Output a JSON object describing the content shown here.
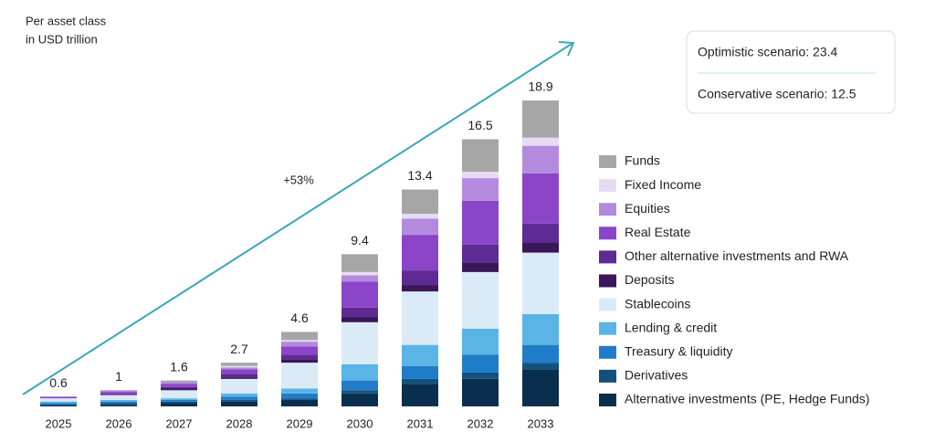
{
  "chart_data": {
    "type": "stacked-bar",
    "subtitle": [
      "Per asset class",
      "in USD trillion"
    ],
    "annotation": "+53%",
    "scenarios": [
      "Optimistic scenario: 23.4",
      "Conservative scenario: 12.5"
    ],
    "categories": [
      "2025",
      "2026",
      "2027",
      "2028",
      "2029",
      "2030",
      "2031",
      "2032",
      "2033"
    ],
    "totals": [
      0.6,
      1.0,
      1.6,
      2.7,
      4.6,
      9.4,
      13.4,
      16.5,
      18.9
    ],
    "series": [
      {
        "name": "Alternative investments (PE, Hedge Funds)",
        "color": "#0a2f4e",
        "values": [
          0.1,
          0.1,
          0.2,
          0.3,
          0.4,
          0.8,
          1.4,
          1.7,
          2.3
        ]
      },
      {
        "name": "Derivatives",
        "color": "#12507e",
        "values": [
          0,
          0.1,
          0.1,
          0.1,
          0.1,
          0.2,
          0.3,
          0.4,
          0.4
        ]
      },
      {
        "name": "Treasury & liquidity",
        "color": "#1f7cc8",
        "values": [
          0.1,
          0.1,
          0.1,
          0.2,
          0.3,
          0.6,
          0.8,
          1.1,
          1.1
        ]
      },
      {
        "name": "Lending & credit",
        "color": "#5ab4e6",
        "values": [
          0.1,
          0.1,
          0.1,
          0.2,
          0.3,
          1.0,
          1.3,
          1.6,
          1.9
        ]
      },
      {
        "name": "Stablecoins",
        "color": "#dbeaf7",
        "values": [
          0.2,
          0.3,
          0.5,
          0.9,
          1.6,
          2.6,
          3.3,
          3.5,
          3.8
        ]
      },
      {
        "name": "Deposits",
        "color": "#3a1858",
        "values": [
          0,
          0,
          0.1,
          0.1,
          0.2,
          0.3,
          0.4,
          0.6,
          0.6
        ]
      },
      {
        "name": "Other alternative investments and RWA",
        "color": "#5e2a93",
        "values": [
          0,
          0.1,
          0.1,
          0.2,
          0.3,
          0.6,
          0.9,
          1.1,
          1.2
        ]
      },
      {
        "name": "Real Estate",
        "color": "#8c44c8",
        "values": [
          0.1,
          0.1,
          0.2,
          0.3,
          0.5,
          1.6,
          2.2,
          2.7,
          3.1
        ]
      },
      {
        "name": "Equities",
        "color": "#b48ade",
        "values": [
          0,
          0.1,
          0.1,
          0.1,
          0.3,
          0.4,
          1.0,
          1.4,
          1.7
        ]
      },
      {
        "name": "Fixed Income",
        "color": "#e6dcf2",
        "values": [
          0,
          0,
          0,
          0.1,
          0.1,
          0.2,
          0.3,
          0.4,
          0.5
        ]
      },
      {
        "name": "Funds",
        "color": "#a6a6a6",
        "values": [
          0,
          0,
          0.1,
          0.2,
          0.5,
          1.1,
          1.5,
          2.0,
          2.3
        ]
      }
    ]
  }
}
